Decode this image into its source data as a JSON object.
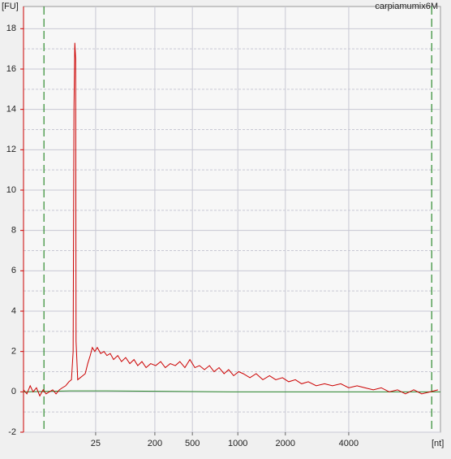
{
  "chart_data": {
    "type": "line",
    "title": "carpiamumix6M",
    "y_label": "[FU]",
    "x_label": "[nt]",
    "xlim": [
      0,
      100
    ],
    "xticks": [
      {
        "value": 17.3,
        "label": "25"
      },
      {
        "value": 31.5,
        "label": "200"
      },
      {
        "value": 40.5,
        "label": "500"
      },
      {
        "value": 51.4,
        "label": "1000"
      },
      {
        "value": 62.8,
        "label": "2000"
      },
      {
        "value": 78.0,
        "label": "4000"
      }
    ],
    "ylim": [
      -2,
      19.1
    ],
    "yticks": [
      -2,
      0,
      2,
      4,
      6,
      8,
      10,
      12,
      14,
      16,
      18
    ],
    "grid": true,
    "markers": {
      "color": "#2e8b2e",
      "x": [
        4.9,
        97.9
      ]
    },
    "series": [
      {
        "color": "#cc0000",
        "x": [
          0.0,
          0.8,
          1.6,
          2.3,
          3.1,
          3.9,
          4.7,
          5.4,
          6.2,
          7.0,
          7.8,
          8.6,
          9.3,
          10.1,
          10.9,
          11.5,
          11.9,
          12.1,
          12.3,
          12.5,
          12.6,
          13.0,
          13.6,
          14.2,
          14.8,
          15.4,
          16.0,
          16.5,
          17.1,
          17.7,
          18.5,
          19.3,
          20.0,
          20.8,
          21.6,
          22.6,
          23.5,
          24.5,
          25.5,
          26.5,
          27.4,
          28.4,
          29.4,
          30.5,
          31.7,
          32.9,
          34.0,
          35.2,
          36.4,
          37.5,
          38.7,
          39.9,
          41.1,
          42.2,
          43.4,
          44.6,
          45.7,
          46.9,
          48.1,
          49.2,
          50.4,
          51.6,
          52.7,
          54.3,
          55.8,
          57.4,
          59.0,
          60.5,
          62.1,
          63.6,
          65.2,
          66.7,
          68.3,
          70.2,
          72.2,
          74.1,
          76.1,
          78.0,
          80.0,
          81.9,
          83.9,
          85.8,
          87.7,
          89.7,
          91.6,
          93.6,
          95.5,
          97.5,
          99.4
        ],
        "values": [
          0.1,
          -0.1,
          0.3,
          0.0,
          0.2,
          -0.2,
          0.1,
          -0.1,
          0.0,
          0.1,
          -0.1,
          0.1,
          0.2,
          0.3,
          0.5,
          0.6,
          2.0,
          14.0,
          17.3,
          16.5,
          2.5,
          0.6,
          0.7,
          0.8,
          0.9,
          1.4,
          1.8,
          2.2,
          2.0,
          2.2,
          1.9,
          2.0,
          1.8,
          1.9,
          1.6,
          1.8,
          1.5,
          1.7,
          1.4,
          1.6,
          1.3,
          1.5,
          1.2,
          1.4,
          1.3,
          1.5,
          1.2,
          1.4,
          1.3,
          1.5,
          1.2,
          1.6,
          1.2,
          1.3,
          1.1,
          1.3,
          1.0,
          1.2,
          0.9,
          1.1,
          0.8,
          1.0,
          0.9,
          0.7,
          0.9,
          0.6,
          0.8,
          0.6,
          0.7,
          0.5,
          0.6,
          0.4,
          0.5,
          0.3,
          0.4,
          0.3,
          0.4,
          0.2,
          0.3,
          0.2,
          0.1,
          0.2,
          0.0,
          0.1,
          -0.1,
          0.1,
          -0.1,
          0.0,
          0.1
        ]
      },
      {
        "color": "#2e8b2e",
        "x": [
          0.0,
          11.0,
          20.0,
          50.0,
          100.0
        ],
        "values": [
          0.0,
          0.05,
          0.05,
          0.0,
          0.0
        ]
      }
    ]
  }
}
